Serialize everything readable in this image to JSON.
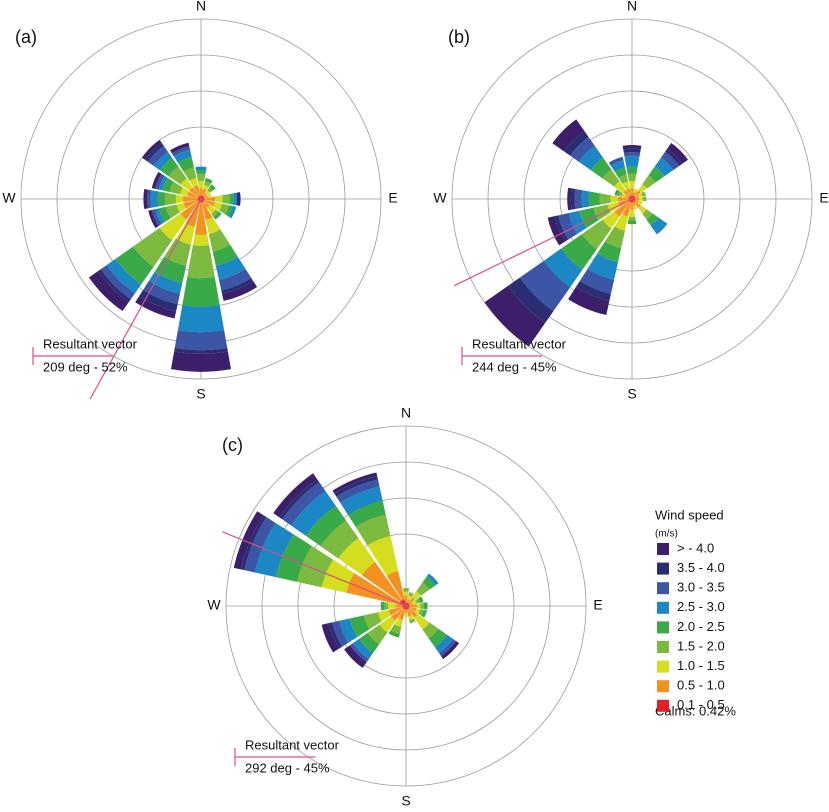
{
  "speed_legend": {
    "title": "Wind speed",
    "unit": "(m/s)",
    "calms": "Calms: 0.42%",
    "bins": [
      {
        "name": "> - 4.0",
        "color": "#3b1f6b"
      },
      {
        "name": "3.5 - 4.0",
        "color": "#2b2d72"
      },
      {
        "name": "3.0 - 3.5",
        "color": "#3c55a5"
      },
      {
        "name": "2.5 - 3.0",
        "color": "#1b87c5"
      },
      {
        "name": "2.0 - 2.5",
        "color": "#3aaa49"
      },
      {
        "name": "1.5 - 2.0",
        "color": "#7cba3f"
      },
      {
        "name": "1.0 - 1.5",
        "color": "#d4de1e"
      },
      {
        "name": "0.5 - 1.0",
        "color": "#f4921f"
      },
      {
        "name": "0.1 - 0.5",
        "color": "#e31e24"
      }
    ]
  },
  "chart_data": [
    {
      "type": "windrose",
      "title": "(a)",
      "compass": [
        "N",
        "E",
        "S",
        "W"
      ],
      "rlim": [
        0,
        5
      ],
      "rings": [
        2,
        3,
        4,
        5
      ],
      "resultant": {
        "label": "Resultant vector",
        "text": "209 deg - 52%",
        "direction": 209,
        "percent": 52
      },
      "series": [
        {
          "values": [
            0,
            0,
            0,
            0,
            0,
            0,
            0,
            0.2,
            0.5,
            0.2,
            0.3,
            0.1,
            0.1,
            0.1,
            0.1,
            0.1
          ]
        },
        {
          "values": [
            0,
            0,
            0,
            0,
            0.1,
            0,
            0,
            0.1,
            0.1,
            0.2,
            0.1,
            0,
            0,
            0,
            0.1,
            0
          ]
        },
        {
          "values": [
            0,
            0,
            0,
            0,
            0,
            0,
            0,
            0.3,
            0.5,
            0.3,
            0.2,
            0.1,
            0.1,
            0.1,
            0.2,
            0.1
          ]
        },
        {
          "values": [
            0.1,
            0,
            0,
            0,
            0.1,
            0.1,
            0,
            0.4,
            0.7,
            0.3,
            0.3,
            0.1,
            0.2,
            0.1,
            0.2,
            0.2
          ]
        },
        {
          "values": [
            0.1,
            0.1,
            0.1,
            0,
            0.1,
            0.1,
            0.1,
            0.4,
            0.8,
            0.5,
            0.6,
            0.2,
            0.2,
            0.2,
            0.3,
            0.3
          ]
        },
        {
          "values": [
            0.2,
            0.1,
            0.1,
            0,
            0.2,
            0.2,
            0.1,
            0.5,
            0.9,
            0.6,
            0.9,
            0.3,
            0.3,
            0.3,
            0.4,
            0.3
          ]
        },
        {
          "values": [
            0.2,
            0.1,
            0.1,
            0.1,
            0.2,
            0.2,
            0.2,
            0.4,
            0.3,
            0.5,
            0.7,
            0.2,
            0.2,
            0.2,
            0.3,
            0.2
          ]
        },
        {
          "values": [
            0.2,
            0.2,
            0.1,
            0.1,
            0.3,
            0.3,
            0.2,
            0.5,
            0.9,
            0.7,
            0.6,
            0.4,
            0.4,
            0.3,
            0.3,
            0.3
          ]
        },
        {
          "values": [
            0.1,
            0.1,
            0.1,
            0.1,
            0.1,
            0.1,
            0.1,
            0.1,
            0.1,
            0.1,
            0.1,
            0.1,
            0.1,
            0.1,
            0.1,
            0.1
          ]
        }
      ]
    },
    {
      "type": "windrose",
      "title": "(b)",
      "compass": [
        "N",
        "E",
        "S",
        "W"
      ],
      "rlim": [
        0,
        5
      ],
      "rings": [
        2,
        3,
        4,
        5
      ],
      "resultant": {
        "label": "Resultant vector",
        "text": "244 deg - 45%",
        "direction": 244,
        "percent": 45
      },
      "series": [
        {
          "values": [
            0.1,
            0,
            0.2,
            0,
            0,
            0,
            0,
            0,
            0,
            0.4,
            0.8,
            0.2,
            0.1,
            0,
            0.4,
            0
          ]
        },
        {
          "values": [
            0.1,
            0,
            0.1,
            0,
            0,
            0,
            0,
            0,
            0,
            0.2,
            0.4,
            0.1,
            0.1,
            0,
            0.2,
            0
          ]
        },
        {
          "values": [
            0.1,
            0,
            0.2,
            0,
            0,
            0,
            0,
            0,
            0,
            0.4,
            0.8,
            0.3,
            0.2,
            0,
            0.3,
            0.1
          ]
        },
        {
          "values": [
            0.3,
            0,
            0.3,
            0,
            0,
            0,
            0.3,
            0,
            0,
            0.5,
            0.6,
            0.3,
            0.2,
            0,
            0.4,
            0.2
          ]
        },
        {
          "values": [
            0.2,
            0,
            0.3,
            0,
            0,
            0,
            0.2,
            0,
            0.1,
            0.4,
            0.7,
            0.4,
            0.3,
            0.1,
            0.4,
            0.2
          ]
        },
        {
          "values": [
            0.2,
            0,
            0.3,
            0.1,
            0.1,
            0,
            0.2,
            0,
            0.1,
            0.5,
            0.7,
            0.4,
            0.3,
            0.1,
            0.4,
            0.2
          ]
        },
        {
          "values": [
            0.2,
            0.1,
            0.2,
            0.1,
            0.1,
            0.1,
            0.2,
            0.1,
            0.2,
            0.4,
            0.4,
            0.3,
            0.2,
            0.1,
            0.3,
            0.2
          ]
        },
        {
          "values": [
            0.2,
            0.1,
            0.2,
            0.1,
            0.1,
            0.1,
            0.2,
            0.1,
            0.2,
            0.4,
            0.5,
            0.3,
            0.3,
            0.1,
            0.2,
            0.2
          ]
        },
        {
          "values": [
            0.1,
            0.1,
            0.1,
            0.1,
            0.1,
            0.1,
            0.1,
            0.1,
            0.1,
            0.1,
            0.1,
            0.1,
            0.1,
            0.1,
            0.1,
            0.1
          ]
        }
      ]
    },
    {
      "type": "windrose",
      "title": "(c)",
      "compass": [
        "N",
        "E",
        "S",
        "W"
      ],
      "rlim": [
        0,
        5
      ],
      "rings": [
        2,
        3,
        4,
        5
      ],
      "resultant": {
        "label": "Resultant vector",
        "text": "292 deg - 45%",
        "direction": 292,
        "percent": 45
      },
      "series": [
        {
          "values": [
            0,
            0,
            0,
            0,
            0,
            0,
            0.1,
            0,
            0,
            0,
            0.2,
            0.2,
            0,
            0.2,
            0.2,
            0.1
          ]
        },
        {
          "values": [
            0,
            0,
            0,
            0,
            0,
            0,
            0,
            0,
            0,
            0,
            0,
            0.1,
            0,
            0.1,
            0.1,
            0.1
          ]
        },
        {
          "values": [
            0,
            0,
            0,
            0,
            0,
            0,
            0.1,
            0,
            0,
            0,
            0.1,
            0.2,
            0,
            0.3,
            0.3,
            0.2
          ]
        },
        {
          "values": [
            0,
            0,
            0.1,
            0,
            0,
            0,
            0.2,
            0,
            0,
            0,
            0.2,
            0.3,
            0,
            0.6,
            0.5,
            0.4
          ]
        },
        {
          "values": [
            0,
            0,
            0.2,
            0.1,
            0.1,
            0.1,
            0.3,
            0,
            0,
            0.1,
            0.3,
            0.4,
            0.1,
            0.6,
            0.5,
            0.4
          ]
        },
        {
          "values": [
            0.1,
            0.1,
            0.3,
            0.1,
            0.1,
            0.1,
            0.3,
            0.1,
            0,
            0.2,
            0.4,
            0.4,
            0.1,
            0.7,
            0.6,
            0.6
          ]
        },
        {
          "values": [
            0.1,
            0.1,
            0.2,
            0.1,
            0.1,
            0.1,
            0.4,
            0.1,
            0.1,
            0.2,
            0.4,
            0.3,
            0.2,
            0.7,
            0.8,
            1.0
          ]
        },
        {
          "values": [
            0.2,
            0.1,
            0.2,
            0.1,
            0.2,
            0.2,
            0.3,
            0.2,
            0.1,
            0.3,
            0.4,
            0.4,
            0.2,
            1.5,
            1.3,
            0.8
          ]
        },
        {
          "values": [
            0.1,
            0.1,
            0.1,
            0.1,
            0.1,
            0.1,
            0.1,
            0.1,
            0.1,
            0.1,
            0.1,
            0.1,
            0.1,
            0.2,
            0.2,
            0.2
          ]
        }
      ]
    }
  ]
}
